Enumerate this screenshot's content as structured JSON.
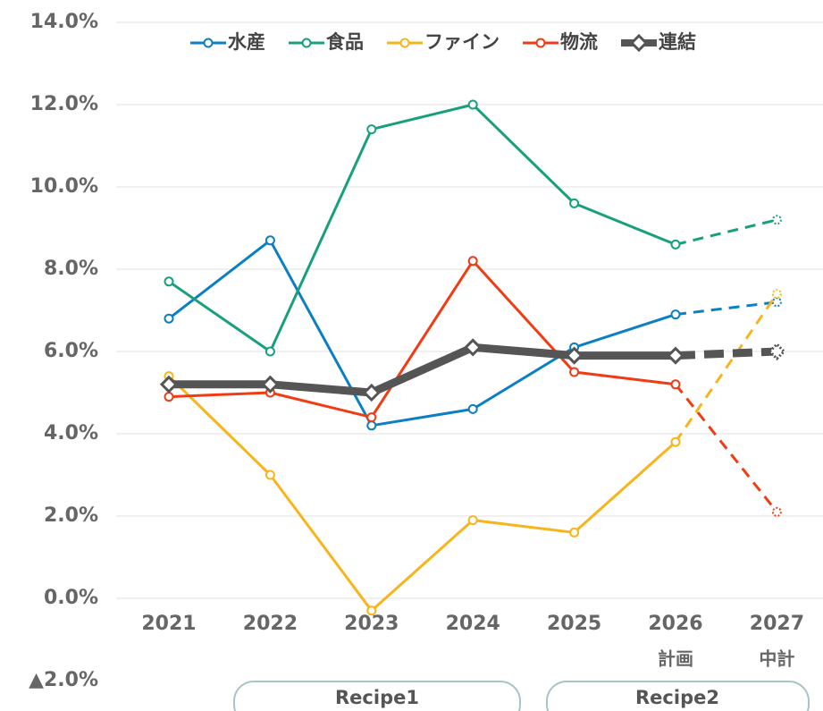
{
  "chart_data": {
    "type": "line",
    "categories": [
      "2021",
      "2022",
      "2023",
      "2024",
      "2025",
      "2026",
      "2027"
    ],
    "category_sublabels": [
      null,
      null,
      null,
      null,
      null,
      "計画",
      "中計"
    ],
    "series": [
      {
        "name": "水産",
        "color": "#0b7fc3",
        "values": [
          6.8,
          8.7,
          4.2,
          4.6,
          6.1,
          6.9,
          7.2
        ]
      },
      {
        "name": "食品",
        "color": "#18a07e",
        "values": [
          7.7,
          6.0,
          11.4,
          12.0,
          9.6,
          8.6,
          9.2
        ]
      },
      {
        "name": "ファイン",
        "color": "#f7b51b",
        "values": [
          5.4,
          3.0,
          -0.3,
          1.9,
          1.6,
          3.8,
          7.4
        ]
      },
      {
        "name": "物流",
        "color": "#f03c14",
        "values": [
          4.9,
          5.0,
          4.4,
          8.2,
          5.5,
          5.2,
          2.1
        ]
      },
      {
        "name": "連結",
        "color": "#555555",
        "values": [
          5.2,
          5.2,
          5.0,
          6.1,
          5.9,
          5.9,
          6.0
        ]
      }
    ],
    "dashed_from_index": 5,
    "ylim": [
      -2,
      14
    ],
    "yticks": [
      {
        "value": -2,
        "label": "▲2.0%"
      },
      {
        "value": 0,
        "label": "0.0%"
      },
      {
        "value": 2,
        "label": "2.0%"
      },
      {
        "value": 4,
        "label": "4.0%"
      },
      {
        "value": 6,
        "label": "6.0%"
      },
      {
        "value": 8,
        "label": "8.0%"
      },
      {
        "value": 10,
        "label": "10.0%"
      },
      {
        "value": 12,
        "label": "12.0%"
      },
      {
        "value": 14,
        "label": "14.0%"
      }
    ],
    "grid": true,
    "legend": "top",
    "groups": [
      "Recipe1",
      "Recipe2"
    ]
  }
}
